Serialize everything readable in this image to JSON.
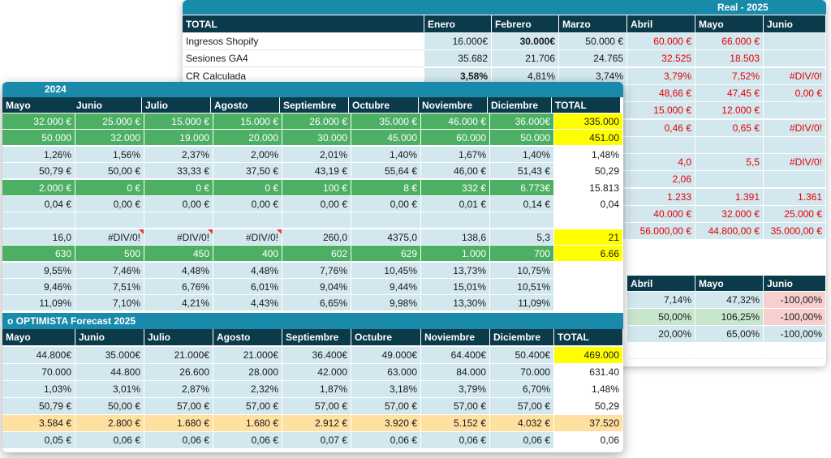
{
  "back": {
    "bar_title": "Real - 2025",
    "total_label": "TOTAL",
    "header": [
      "Enero",
      "Febrero",
      "Marzo",
      "Abril",
      "Mayo",
      "Junio"
    ],
    "rows": [
      {
        "label": "Ingresos Shopify",
        "cells": [
          "16.000€",
          "30.000€",
          "50.000 €",
          "60.000 €",
          "66.000 €",
          ""
        ]
      },
      {
        "label": "Sesiones GA4",
        "cells": [
          "35.682",
          "21.706",
          "24.765",
          "32.525",
          "18.503",
          ""
        ]
      },
      {
        "label": "CR Calculada",
        "cells": [
          "3,58%",
          "4,81%",
          "3,74%",
          "3,79%",
          "7,52%",
          "#DIV/0!"
        ]
      },
      {
        "label": "",
        "cells": [
          "",
          "",
          "",
          "48,66 €",
          "47,45 €",
          "0,00 €"
        ]
      },
      {
        "label": "",
        "cells": [
          "",
          "",
          "",
          "15.000 €",
          "12.000 €",
          ""
        ]
      },
      {
        "label": "",
        "cells": [
          "",
          "",
          "",
          "0,46 €",
          "0,65 €",
          "#DIV/0!"
        ]
      },
      {
        "label": "",
        "cells": [
          "",
          "",
          "",
          "",
          "",
          ""
        ]
      },
      {
        "label": "",
        "cells": [
          "",
          "",
          "",
          "4,0",
          "5,5",
          "#DIV/0!"
        ]
      },
      {
        "label": "",
        "cells": [
          "",
          "",
          "",
          "2,06",
          "",
          ""
        ]
      },
      {
        "label": "",
        "cells": [
          "",
          "",
          "",
          "1.233",
          "1.391",
          "1.361"
        ]
      },
      {
        "label": "",
        "cells": [
          "",
          "",
          "",
          "40.000 €",
          "32.000 €",
          "25.000 €"
        ]
      },
      {
        "label": "",
        "cells": [
          "",
          "",
          "",
          "56.000,00 €",
          "44.800,00 €",
          "35.000,00 €"
        ]
      }
    ],
    "table2_header": [
      "Abril",
      "Mayo",
      "Junio"
    ],
    "table2_rows": [
      [
        "7,14%",
        "47,32%",
        "-100,00%"
      ],
      [
        "50,00%",
        "106,25%",
        "-100,00%"
      ],
      [
        "20,00%",
        "65,00%",
        "-100,00%"
      ]
    ]
  },
  "front": {
    "top_title": "2024",
    "bottom_title": "o OPTIMISTA Forecast 2025",
    "header": [
      "Mayo",
      "Junio",
      "Julio",
      "Agosto",
      "Septiembre",
      "Octubre",
      "Noviembre",
      "Diciembre",
      "TOTAL"
    ],
    "top_rows": [
      [
        "32.000 €",
        "25.000 €",
        "15.000 €",
        "15.000 €",
        "26.000 €",
        "35.000 €",
        "46.000 €",
        "36.000€",
        "335.000"
      ],
      [
        "50.000",
        "32.000",
        "19.000",
        "20.000",
        "30.000",
        "45.000",
        "60.000",
        "50.000",
        "451.00"
      ],
      [
        "1,26%",
        "1,56%",
        "2,37%",
        "2,00%",
        "2,01%",
        "1,40%",
        "1,67%",
        "1,40%",
        "1,48%"
      ],
      [
        "50,79 €",
        "50,00 €",
        "33,33 €",
        "37,50 €",
        "43,19 €",
        "55,64 €",
        "46,00 €",
        "51,43 €",
        "50,29"
      ],
      [
        "2.000 €",
        "0 €",
        "0 €",
        "0 €",
        "100 €",
        "8 €",
        "332 €",
        "6.773€",
        "15.813"
      ],
      [
        "0,04 €",
        "0,00 €",
        "0,00 €",
        "0,00 €",
        "0,00 €",
        "0,00 €",
        "0,01 €",
        "0,14 €",
        "0,04"
      ],
      [
        "",
        "",
        "",
        "",
        "",
        "",
        "",
        "",
        ""
      ],
      [
        "16,0",
        "#DIV/0!",
        "#DIV/0!",
        "#DIV/0!",
        "260,0",
        "4375,0",
        "138,6",
        "5,3",
        "21"
      ],
      [
        "630",
        "500",
        "450",
        "400",
        "602",
        "629",
        "1.000",
        "700",
        "6.66"
      ],
      [
        "9,55%",
        "7,46%",
        "4,48%",
        "4,48%",
        "7,76%",
        "10,45%",
        "13,73%",
        "10,75%",
        ""
      ],
      [
        "9,46%",
        "7,51%",
        "6,76%",
        "6,01%",
        "9,04%",
        "9,44%",
        "15,01%",
        "10,51%",
        ""
      ],
      [
        "11,09%",
        "7,10%",
        "4,21%",
        "4,43%",
        "6,65%",
        "9,98%",
        "13,30%",
        "11,09%",
        ""
      ]
    ],
    "bottom_rows": [
      [
        "44.800€",
        "35.000€",
        "21.000€",
        "21.000€",
        "36.400€",
        "49.000€",
        "64.400€",
        "50.400€",
        "469.000"
      ],
      [
        "70.000",
        "44.800",
        "26.600",
        "28.000",
        "42.000",
        "63.000",
        "84.000",
        "70.000",
        "631.40"
      ],
      [
        "1,03%",
        "3,01%",
        "2,87%",
        "2,32%",
        "1,87%",
        "3,18%",
        "3,79%",
        "6,70%",
        "1,48%"
      ],
      [
        "50,79 €",
        "50,00 €",
        "57,00 €",
        "57,00 €",
        "57,00 €",
        "57,00 €",
        "57,00 €",
        "57,00 €",
        "50,29"
      ],
      [
        "3.584 €",
        "2.800 €",
        "1.680 €",
        "1.680 €",
        "2.912 €",
        "3.920 €",
        "5.152 €",
        "4.032 €",
        "37.520"
      ],
      [
        "0,05 €",
        "0,06 €",
        "0,06 €",
        "0,06 €",
        "0,07 €",
        "0,06 €",
        "0,06 €",
        "0,06 €",
        "0,06"
      ]
    ]
  }
}
